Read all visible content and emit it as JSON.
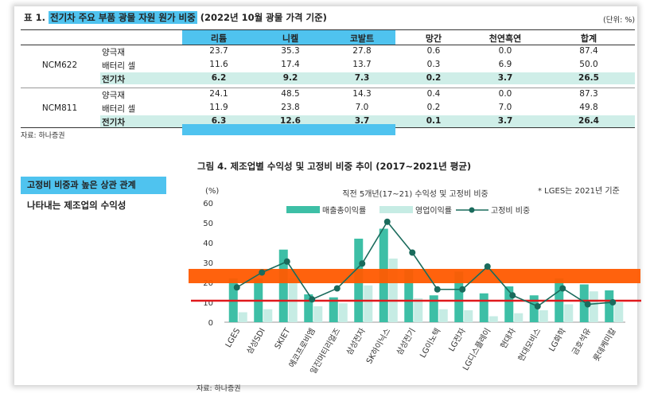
{
  "table": {
    "title_prefix": "표 1.",
    "title_main": "전기차 주요 부품 광물 자원 원가 비중",
    "title_suffix": "(2022년 10월 광물 가격 기준)",
    "unit": "(단위: %)",
    "columns": [
      "리튬",
      "니켈",
      "코발트",
      "망간",
      "천연흑연",
      "합계"
    ],
    "groups": [
      {
        "name": "NCM622",
        "rows": [
          {
            "label": "양극재",
            "values": [
              "23.7",
              "35.3",
              "27.8",
              "0.6",
              "0.0",
              "87.4"
            ]
          },
          {
            "label": "배터리 셀",
            "values": [
              "11.6",
              "17.4",
              "13.7",
              "0.3",
              "6.9",
              "50.0"
            ]
          },
          {
            "label": "전기차",
            "values": [
              "6.2",
              "9.2",
              "7.3",
              "0.2",
              "3.7",
              "26.5"
            ]
          }
        ]
      },
      {
        "name": "NCM811",
        "rows": [
          {
            "label": "양극재",
            "values": [
              "24.1",
              "48.5",
              "14.3",
              "0.4",
              "0.0",
              "87.3"
            ]
          },
          {
            "label": "배터리 셀",
            "values": [
              "11.9",
              "23.8",
              "7.0",
              "0.2",
              "7.0",
              "49.8"
            ]
          },
          {
            "label": "전기차",
            "values": [
              "6.3",
              "12.6",
              "3.7",
              "0.1",
              "3.7",
              "26.4"
            ]
          }
        ]
      }
    ],
    "source": "자료: 하나증권"
  },
  "callout": {
    "line1": "고정비 비중과 높은 상관 관계",
    "line2": "나타내는 제조업의 수익성"
  },
  "figure": {
    "title": "그림 4. 제조업별 수익성 및 고정비 비중 추이 (2017~2021년 평균)",
    "source": "자료: 하나증권"
  },
  "colors": {
    "accent_blue": "#4fc3ef",
    "teal_row": "#cfeee8",
    "bar_sales": "#3dbfa6",
    "bar_op": "#c6ece4",
    "line": "#1a6b5c",
    "orange_band": "#ff5a00",
    "red_line": "#e0191d"
  },
  "chart_data": {
    "type": "bar",
    "title": "직전 5개년(17~21) 수익성 및 고정비 비중",
    "note": "* LGES는 2021년 기준",
    "ylabel": "(%)",
    "ylim": [
      0,
      60
    ],
    "yticks": [
      0,
      10,
      20,
      30,
      40,
      50,
      60
    ],
    "grid": false,
    "legend_position": "top",
    "categories": [
      "LGES",
      "삼성SDI",
      "SKIET",
      "에코프로비엠",
      "일진머티리얼즈",
      "삼성전자",
      "SK하이닉스",
      "삼성전기",
      "LG이노텍",
      "LG전자",
      "LG디스플레이",
      "현대차",
      "현대모비스",
      "LG화학",
      "금호석유",
      "롯데케미칼"
    ],
    "series": [
      {
        "name": "매출총이익률",
        "kind": "bar",
        "values": [
          22,
          22,
          36.5,
          14,
          12.5,
          42,
          47,
          26.5,
          13.5,
          25.5,
          14.5,
          18,
          13.5,
          22,
          19,
          16
        ]
      },
      {
        "name": "영업이익률",
        "kind": "bar",
        "values": [
          5,
          6.5,
          22,
          8,
          9.5,
          18.5,
          32,
          12,
          6.5,
          6,
          3,
          4.5,
          6,
          9,
          15.5,
          10
        ]
      },
      {
        "name": "고정비 비중",
        "kind": "line",
        "values": [
          17.5,
          25,
          30.5,
          11.5,
          17,
          29.5,
          50.5,
          35,
          16.5,
          16.5,
          28,
          13.5,
          8,
          17,
          9,
          10
        ]
      }
    ]
  }
}
